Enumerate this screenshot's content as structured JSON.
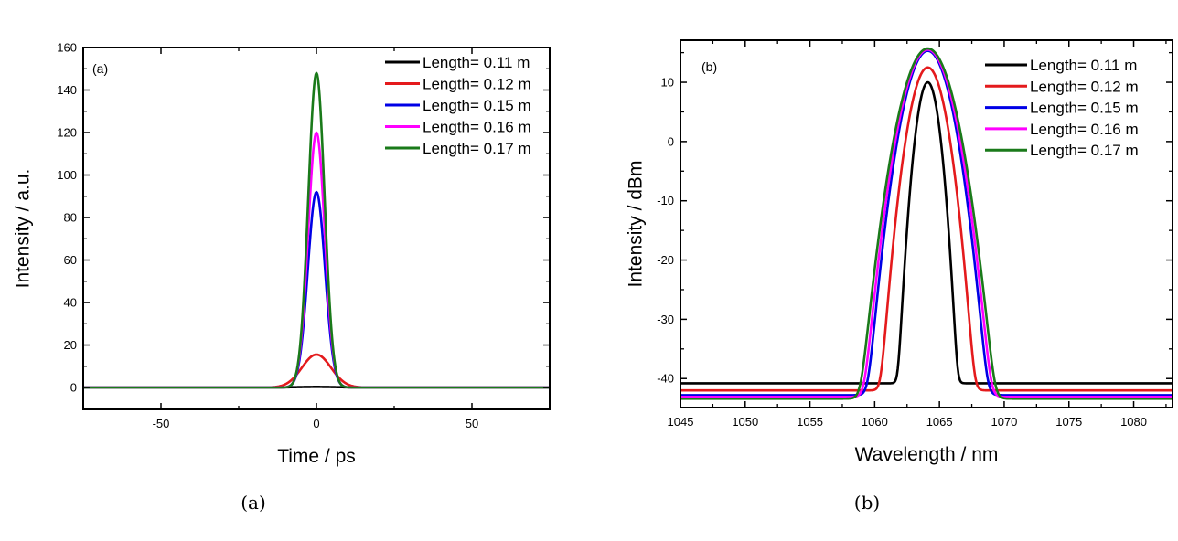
{
  "chart_data": [
    {
      "type": "line",
      "panel_tag": "(a)",
      "caption": "(a)",
      "xlabel": "Time / ps",
      "ylabel": "Intensity / a.u.",
      "xlim": [
        -75,
        75
      ],
      "ylim": [
        -10.3,
        160
      ],
      "xticks": [
        -50,
        0,
        50
      ],
      "xtick_labels": [
        "-50",
        "0",
        "50"
      ],
      "xminor": [
        -75,
        -25,
        25,
        75
      ],
      "yticks": [
        0,
        20,
        40,
        60,
        80,
        100,
        120,
        140,
        160
      ],
      "ytick_labels": [
        "0",
        "20",
        "40",
        "60",
        "80",
        "100",
        "120",
        "140",
        "160"
      ],
      "yminor": [
        10,
        30,
        50,
        70,
        90,
        110,
        130,
        150
      ],
      "grid": false,
      "legend_position": "top-right",
      "scale": "linear",
      "series": [
        {
          "name": "Length= 0.11 m",
          "color": "#000000",
          "peak": 0.3,
          "center": 0,
          "width": 9.0,
          "baseline": 0
        },
        {
          "name": "Length= 0.12 m",
          "color": "#e41a1c",
          "peak": 15.5,
          "center": 0,
          "width": 6.6,
          "baseline": 0
        },
        {
          "name": "Length= 0.15 m",
          "color": "#0000e6",
          "peak": 92,
          "center": 0,
          "width": 3.9,
          "baseline": 0
        },
        {
          "name": "Length= 0.16 m",
          "color": "#ff00ff",
          "peak": 120,
          "center": 0,
          "width": 3.8,
          "baseline": 0
        },
        {
          "name": "Length= 0.17 m",
          "color": "#1a7a1a",
          "peak": 148,
          "center": 0,
          "width": 3.7,
          "baseline": 0
        }
      ]
    },
    {
      "type": "line",
      "panel_tag": "(b)",
      "caption": "(b)",
      "xlabel": "Wavelength / nm",
      "ylabel": "Intensity / dBm",
      "xlim": [
        1045,
        1083
      ],
      "ylim": [
        -44.9,
        17.1
      ],
      "xticks": [
        1045,
        1050,
        1055,
        1060,
        1065,
        1070,
        1075,
        1080
      ],
      "xtick_labels": [
        "1045",
        "1050",
        "1055",
        "1060",
        "1065",
        "1070",
        "1075",
        "1080"
      ],
      "xminor": [
        1047.5,
        1052.5,
        1057.5,
        1062.5,
        1067.5,
        1072.5,
        1077.5,
        1082.5
      ],
      "yticks": [
        -40,
        -30,
        -20,
        -10,
        0,
        10
      ],
      "ytick_labels": [
        "-40",
        "-30",
        "-20",
        "-10",
        "0",
        "10"
      ],
      "yminor": [
        -35,
        -25,
        -15,
        -5,
        5,
        15
      ],
      "grid": false,
      "legend_position": "top-right",
      "scale": "dB",
      "series": [
        {
          "name": "Length= 0.11 m",
          "color": "#000000",
          "peak": 10.0,
          "center": 1064.1,
          "width": 0.67,
          "baseline": -40.8
        },
        {
          "name": "Length= 0.12 m",
          "color": "#e41a1c",
          "peak": 12.5,
          "center": 1064.1,
          "width": 1.02,
          "baseline": -42.0
        },
        {
          "name": "Length= 0.15 m",
          "color": "#0000e6",
          "peak": 15.3,
          "center": 1064.1,
          "width": 1.26,
          "baseline": -42.8
        },
        {
          "name": "Length= 0.16 m",
          "color": "#ff00ff",
          "peak": 15.5,
          "center": 1064.1,
          "width": 1.33,
          "baseline": -43.1
        },
        {
          "name": "Length= 0.17 m",
          "color": "#1a7a1a",
          "peak": 15.7,
          "center": 1064.1,
          "width": 1.4,
          "baseline": -43.4
        }
      ]
    }
  ]
}
